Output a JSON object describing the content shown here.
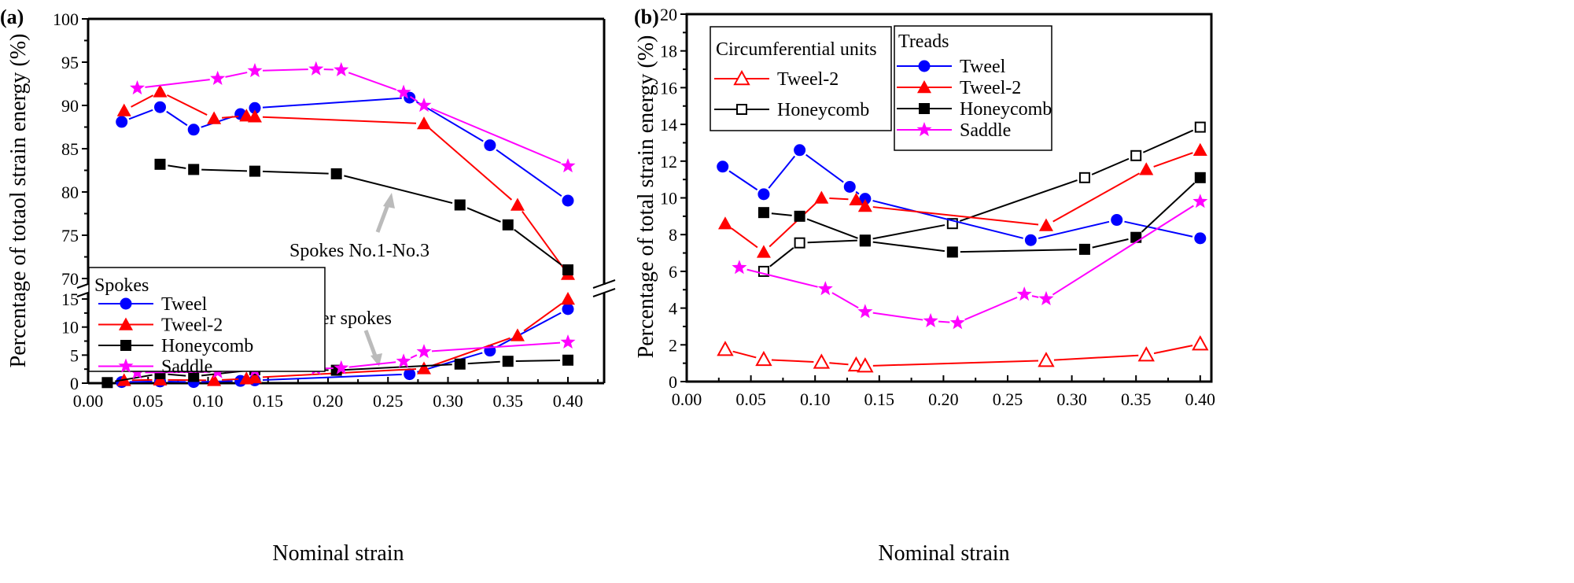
{
  "chart_data": [
    {
      "panel_label": "(a)",
      "type": "line",
      "xlabel": "Nominal strain",
      "ylabel": "Percentage of totaol strain energy (%)",
      "xlim": [
        0.0,
        0.43
      ],
      "x_ticks": [
        "0.00",
        "0.05",
        "0.10",
        "0.15",
        "0.20",
        "0.25",
        "0.30",
        "0.35",
        "0.40"
      ],
      "y_axis_break": true,
      "ylim_upper": [
        70,
        100
      ],
      "y_ticks_upper": [
        "70",
        "75",
        "80",
        "85",
        "90",
        "95",
        "100"
      ],
      "ylim_lower": [
        0,
        15
      ],
      "y_ticks_lower": [
        "0",
        "5",
        "10",
        "15"
      ],
      "legend": {
        "title": "Spokes",
        "placement": "bottom-left"
      },
      "annotations": [
        "Spokes No.1-No.3",
        "Other spokes"
      ],
      "series": [
        {
          "name": "Tweel",
          "color": "#0000ff",
          "marker": "circle",
          "group": "upper",
          "x": [
            0.028,
            0.06,
            0.088,
            0.127,
            0.139,
            0.268,
            0.335,
            0.4
          ],
          "y": [
            88.1,
            89.8,
            87.2,
            89.0,
            89.7,
            90.9,
            85.4,
            79.0
          ]
        },
        {
          "name": "Tweel-2",
          "color": "#ff0000",
          "marker": "triangle",
          "group": "upper",
          "x": [
            0.03,
            0.06,
            0.105,
            0.132,
            0.139,
            0.28,
            0.358,
            0.4
          ],
          "y": [
            89.4,
            91.6,
            88.5,
            88.8,
            88.7,
            87.9,
            78.5,
            70.5
          ]
        },
        {
          "name": "Honeycomb",
          "color": "#000000",
          "marker": "square",
          "group": "upper",
          "x": [
            0.06,
            0.088,
            0.139,
            0.207,
            0.31,
            0.35,
            0.4
          ],
          "y": [
            83.2,
            82.6,
            82.4,
            82.1,
            78.5,
            76.2,
            71.0
          ]
        },
        {
          "name": "Saddle",
          "color": "#ff00ff",
          "marker": "star",
          "group": "upper",
          "x": [
            0.041,
            0.108,
            0.139,
            0.19,
            0.211,
            0.263,
            0.28,
            0.4
          ],
          "y": [
            92.0,
            93.1,
            94.0,
            94.2,
            94.1,
            91.5,
            90.0,
            83.0
          ]
        },
        {
          "name": "Tweel",
          "color": "#0000ff",
          "marker": "circle",
          "group": "lower",
          "x": [
            0.028,
            0.06,
            0.088,
            0.127,
            0.139,
            0.268,
            0.335,
            0.4
          ],
          "y": [
            0.2,
            0.3,
            0.2,
            0.4,
            0.5,
            1.6,
            5.8,
            13.2
          ]
        },
        {
          "name": "Tweel-2",
          "color": "#ff0000",
          "marker": "triangle",
          "group": "lower",
          "x": [
            0.03,
            0.06,
            0.105,
            0.132,
            0.139,
            0.28,
            0.358,
            0.4
          ],
          "y": [
            0.5,
            0.6,
            0.5,
            0.8,
            1.0,
            2.6,
            8.5,
            15.0
          ]
        },
        {
          "name": "Honeycomb",
          "color": "#000000",
          "marker": "square",
          "group": "lower",
          "x": [
            0.016,
            0.06,
            0.088,
            0.139,
            0.207,
            0.31,
            0.35,
            0.4
          ],
          "y": [
            0.1,
            1.7,
            1.2,
            2.4,
            2.3,
            3.4,
            3.9,
            4.1
          ]
        },
        {
          "name": "Saddle",
          "color": "#ff00ff",
          "marker": "star",
          "group": "lower",
          "x": [
            0.041,
            0.108,
            0.139,
            0.19,
            0.211,
            0.263,
            0.28,
            0.4
          ],
          "y": [
            1.9,
            2.0,
            2.3,
            2.6,
            2.7,
            3.9,
            5.6,
            7.3
          ]
        }
      ]
    },
    {
      "panel_label": "(b)",
      "type": "line",
      "xlabel": "Nominal strain",
      "ylabel": "Percentage of total strain energy (%)",
      "xlim": [
        0.0,
        0.42
      ],
      "x_ticks": [
        "0.00",
        "0.05",
        "0.10",
        "0.15",
        "0.20",
        "0.25",
        "0.30",
        "0.35",
        "0.40"
      ],
      "ylim": [
        0,
        20
      ],
      "y_ticks": [
        "0",
        "2",
        "4",
        "6",
        "8",
        "10",
        "12",
        "14",
        "16",
        "18",
        "20"
      ],
      "legends": [
        {
          "title": "Circumferential units",
          "placement": "top-left",
          "entries": [
            "Tweel-2",
            "Honeycomb"
          ]
        },
        {
          "title": "Treads",
          "placement": "top-center",
          "entries": [
            "Tweel",
            "Tweel-2",
            "Honeycomb",
            "Saddle"
          ]
        }
      ],
      "series": [
        {
          "name": "Tweel-2",
          "legend": "Circumferential units",
          "color": "#ff0000",
          "marker": "triangle-open",
          "x": [
            0.03,
            0.06,
            0.105,
            0.132,
            0.139,
            0.28,
            0.358,
            0.4
          ],
          "y": [
            1.75,
            1.2,
            1.05,
            0.9,
            0.85,
            1.15,
            1.45,
            2.05
          ]
        },
        {
          "name": "Honeycomb",
          "legend": "Circumferential units",
          "color": "#000000",
          "marker": "square-open",
          "x": [
            0.06,
            0.088,
            0.139,
            0.207,
            0.31,
            0.35,
            0.4
          ],
          "y": [
            6.0,
            7.55,
            7.7,
            8.6,
            11.1,
            12.3,
            13.85
          ]
        },
        {
          "name": "Tweel",
          "legend": "Treads",
          "color": "#0000ff",
          "marker": "circle",
          "x": [
            0.028,
            0.06,
            0.088,
            0.127,
            0.139,
            0.268,
            0.335,
            0.4
          ],
          "y": [
            11.7,
            10.2,
            12.6,
            10.6,
            9.95,
            7.7,
            8.8,
            7.8
          ]
        },
        {
          "name": "Tweel-2",
          "legend": "Treads",
          "color": "#ff0000",
          "marker": "triangle",
          "x": [
            0.03,
            0.06,
            0.105,
            0.132,
            0.139,
            0.28,
            0.358,
            0.4
          ],
          "y": [
            8.6,
            7.05,
            10.0,
            9.9,
            9.55,
            8.5,
            11.55,
            12.6
          ]
        },
        {
          "name": "Honeycomb",
          "legend": "Treads",
          "color": "#000000",
          "marker": "square",
          "x": [
            0.06,
            0.088,
            0.139,
            0.207,
            0.31,
            0.35,
            0.4
          ],
          "y": [
            9.2,
            9.0,
            7.65,
            7.05,
            7.2,
            7.85,
            11.1
          ]
        },
        {
          "name": "Saddle",
          "legend": "Treads",
          "color": "#ff00ff",
          "marker": "star",
          "x": [
            0.041,
            0.108,
            0.139,
            0.19,
            0.211,
            0.263,
            0.28,
            0.4
          ],
          "y": [
            6.2,
            5.05,
            3.8,
            3.3,
            3.2,
            4.75,
            4.5,
            9.8
          ]
        }
      ]
    }
  ]
}
